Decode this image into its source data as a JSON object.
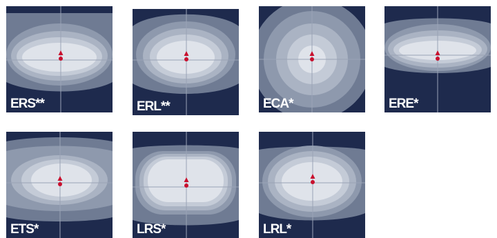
{
  "tiles": [
    {
      "label": "ERS**",
      "shape": "wide-flat"
    },
    {
      "label": "ERL**",
      "shape": "wide-tall"
    },
    {
      "label": "ECA*",
      "shape": "circular"
    },
    {
      "label": "ERE*",
      "shape": "elliptical-flat"
    },
    {
      "label": "ETS*",
      "shape": "wide-irregular"
    },
    {
      "label": "LRS*",
      "shape": "rectangular"
    },
    {
      "label": "LRL*",
      "shape": "oval"
    }
  ],
  "colors": {
    "background": "#1e2a4d",
    "bands": [
      "#6f7b93",
      "#8e99ad",
      "#aab3c3",
      "#c4cbd7",
      "#dfe3ea"
    ],
    "center_marker": "#c8102e",
    "crosshair": "#9aa3b6",
    "label": "#ffffff"
  }
}
